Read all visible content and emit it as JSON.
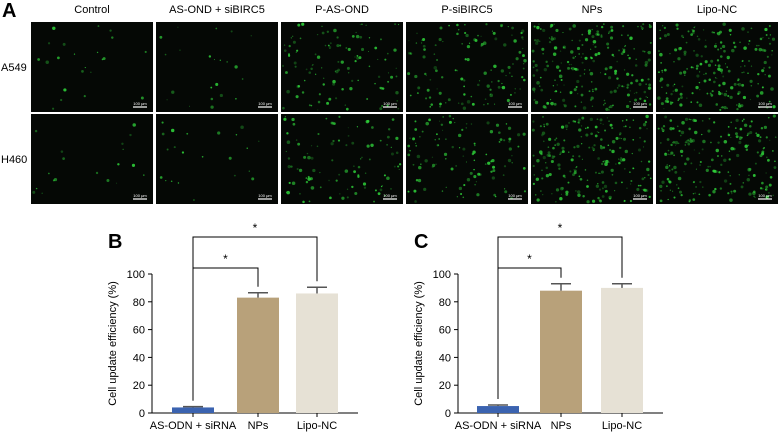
{
  "panel_labels": {
    "a": "A",
    "b": "B",
    "c": "C"
  },
  "micrographs": {
    "columns": [
      "Control",
      "AS-OND + siBIRC5",
      "P-AS-OND",
      "P-siBIRC5",
      "NPs",
      "Lipo-NC"
    ],
    "rows": [
      "A549",
      "H460"
    ],
    "scale_bar_label": "100 μm",
    "fluorescence_color": "#2fd23a",
    "background_color": "#050805",
    "density": [
      [
        0.05,
        0.05,
        0.45,
        0.5,
        0.95,
        0.9
      ],
      [
        0.04,
        0.05,
        0.4,
        0.45,
        0.9,
        0.85
      ]
    ]
  },
  "chart_data": [
    {
      "type": "bar",
      "panel": "B",
      "categories": [
        "AS-ODN + siRNA",
        "NPs",
        "Lipo-NC"
      ],
      "values": [
        4,
        83,
        86
      ],
      "errors": [
        0.6,
        3.5,
        4.5
      ],
      "colors": [
        "#3b63b0",
        "#b8a17a",
        "#e6e1d5"
      ],
      "ylabel": "Cell update efficiency (%)",
      "xlabel": "",
      "ylim": [
        0,
        100
      ],
      "yticks": [
        0,
        20,
        40,
        60,
        80,
        100
      ],
      "grid": false,
      "significance": [
        {
          "from": "AS-ODN + siRNA",
          "to": "NPs",
          "label": "*"
        },
        {
          "from": "AS-ODN + siRNA",
          "to": "Lipo-NC",
          "label": "*"
        }
      ]
    },
    {
      "type": "bar",
      "panel": "C",
      "categories": [
        "AS-ODN + siRNA",
        "NPs",
        "Lipo-NC"
      ],
      "values": [
        5,
        88,
        90
      ],
      "errors": [
        0.8,
        5,
        3
      ],
      "colors": [
        "#3b63b0",
        "#b8a17a",
        "#e6e1d5"
      ],
      "ylabel": "Cell update efficiency (%)",
      "xlabel": "",
      "ylim": [
        0,
        100
      ],
      "yticks": [
        0,
        20,
        40,
        60,
        80,
        100
      ],
      "grid": false,
      "significance": [
        {
          "from": "AS-ODN + siRNA",
          "to": "NPs",
          "label": "*"
        },
        {
          "from": "AS-ODN + siRNA",
          "to": "Lipo-NC",
          "label": "*"
        }
      ]
    }
  ]
}
